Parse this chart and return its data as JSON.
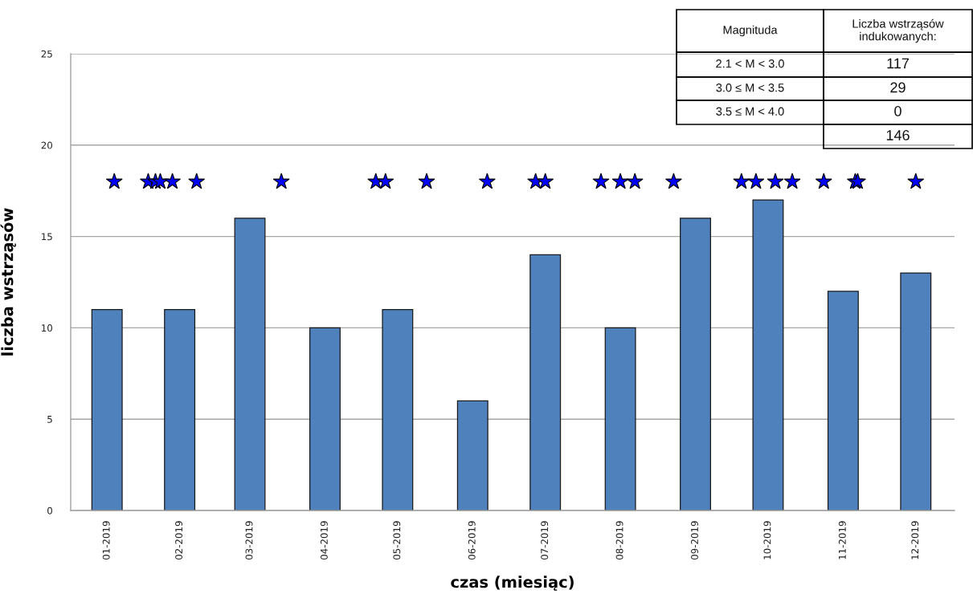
{
  "chart_data": {
    "type": "bar",
    "x": [
      "2019-01-16",
      "2019-02-15",
      "2019-03-16",
      "2019-04-16",
      "2019-05-16",
      "2019-06-16",
      "2019-07-16",
      "2019-08-16",
      "2019-09-16",
      "2019-10-16",
      "2019-11-16",
      "2019-12-16"
    ],
    "xlim": [
      "2019-01-01",
      "2020-01-01"
    ],
    "xticks": [
      {
        "value": "2019-01-16",
        "label": "01-2019"
      },
      {
        "value": "2019-02-15",
        "label": "02-2019"
      },
      {
        "value": "2019-03-16",
        "label": "03-2019"
      },
      {
        "value": "2019-04-16",
        "label": "04-2019"
      },
      {
        "value": "2019-05-16",
        "label": "05-2019"
      },
      {
        "value": "2019-06-16",
        "label": "06-2019"
      },
      {
        "value": "2019-07-16",
        "label": "07-2019"
      },
      {
        "value": "2019-08-16",
        "label": "08-2019"
      },
      {
        "value": "2019-09-16",
        "label": "09-2019"
      },
      {
        "value": "2019-10-16",
        "label": "10-2019"
      },
      {
        "value": "2019-11-16",
        "label": "11-2019"
      },
      {
        "value": "2019-12-16",
        "label": "12-2019"
      }
    ],
    "series": [
      {
        "color": "#4f81bd",
        "values": [
          11,
          11,
          16,
          10,
          11,
          6,
          14,
          10,
          16,
          17,
          12,
          13
        ]
      },
      {
        "type": "scatter",
        "color": "#0000ff",
        "marker": "star",
        "x": [
          "2019-01-19",
          "2019-02-02",
          "2019-02-05",
          "2019-02-07",
          "2019-02-12",
          "2019-02-22",
          "2019-03-29",
          "2019-05-07",
          "2019-05-11",
          "2019-05-28",
          "2019-06-22",
          "2019-07-12",
          "2019-07-16",
          "2019-08-08",
          "2019-08-16",
          "2019-08-22",
          "2019-09-07",
          "2019-10-05",
          "2019-10-11",
          "2019-10-19",
          "2019-10-26",
          "2019-11-08",
          "2019-11-21",
          "2019-11-22",
          "2019-12-16"
        ],
        "values": [
          18,
          18,
          18,
          18,
          18,
          18,
          18,
          18,
          18,
          18,
          18,
          18,
          18,
          18,
          18,
          18,
          18,
          18,
          18,
          18,
          18,
          18,
          18,
          18,
          18
        ]
      }
    ],
    "ylim": [
      0,
      25
    ],
    "yticks": [
      0,
      5,
      10,
      15,
      20,
      25
    ],
    "grid": "y",
    "xlabel": "czas (miesiąc)",
    "ylabel": "liczba wstrząsów",
    "annotations": [
      "Magnituda",
      "Liczba wstrząsów\nindukowanych:",
      "2.1 < M < 3.0",
      "117",
      "3.0 ≤ M < 3.5",
      "29",
      "3.5 ≤ M < 4.0",
      "0",
      "146"
    ]
  }
}
